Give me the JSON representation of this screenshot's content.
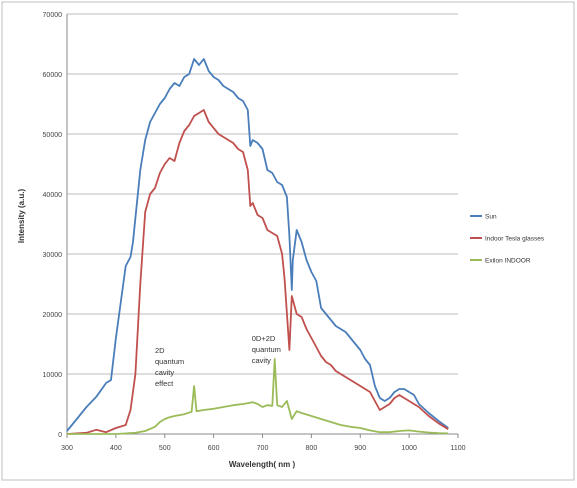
{
  "chart_data": {
    "type": "line",
    "title": "",
    "xlabel": "Wavelength( nm )",
    "ylabel": "Intensity (a.u.)",
    "xlim": [
      300,
      1100
    ],
    "ylim": [
      0,
      70000
    ],
    "x_ticks": [
      300,
      400,
      500,
      600,
      700,
      800,
      900,
      1000,
      1100
    ],
    "y_ticks": [
      0,
      10000,
      20000,
      30000,
      40000,
      50000,
      60000,
      70000
    ],
    "x_tick_labels": [
      "300",
      "400",
      "500",
      "600",
      "700",
      "800",
      "900",
      "1000",
      "1100"
    ],
    "y_tick_labels": [
      "0",
      "10000",
      "20000",
      "30000",
      "40000",
      "50000",
      "60000",
      "70000"
    ],
    "grid": "horizontal",
    "legend_position": "right",
    "annotations": [
      {
        "lines": [
          "2D",
          "quantum",
          "cavity",
          "effect"
        ],
        "x": 480,
        "y": 13500
      },
      {
        "lines": [
          "0D+2D",
          "quantum",
          "cavity"
        ],
        "x": 678,
        "y": 15500
      }
    ],
    "series": [
      {
        "name": "Sun",
        "color": "#4a7ebb",
        "points": [
          [
            300,
            500
          ],
          [
            320,
            2500
          ],
          [
            340,
            4500
          ],
          [
            360,
            6200
          ],
          [
            380,
            8500
          ],
          [
            390,
            9000
          ],
          [
            400,
            16000
          ],
          [
            410,
            22000
          ],
          [
            420,
            28000
          ],
          [
            430,
            29500
          ],
          [
            435,
            32000
          ],
          [
            440,
            36000
          ],
          [
            450,
            44000
          ],
          [
            460,
            49000
          ],
          [
            470,
            52000
          ],
          [
            480,
            53500
          ],
          [
            490,
            55000
          ],
          [
            500,
            56000
          ],
          [
            510,
            57500
          ],
          [
            520,
            58500
          ],
          [
            530,
            58000
          ],
          [
            540,
            59500
          ],
          [
            550,
            60000
          ],
          [
            560,
            62500
          ],
          [
            570,
            61500
          ],
          [
            580,
            62500
          ],
          [
            590,
            60500
          ],
          [
            600,
            59500
          ],
          [
            610,
            59000
          ],
          [
            620,
            58000
          ],
          [
            630,
            57500
          ],
          [
            640,
            57000
          ],
          [
            650,
            56000
          ],
          [
            660,
            55500
          ],
          [
            670,
            54000
          ],
          [
            675,
            48000
          ],
          [
            680,
            49000
          ],
          [
            690,
            48500
          ],
          [
            700,
            47500
          ],
          [
            710,
            44000
          ],
          [
            720,
            43500
          ],
          [
            730,
            42000
          ],
          [
            740,
            41500
          ],
          [
            750,
            39500
          ],
          [
            755,
            33000
          ],
          [
            760,
            24000
          ],
          [
            762,
            29000
          ],
          [
            770,
            34000
          ],
          [
            780,
            32000
          ],
          [
            790,
            29000
          ],
          [
            800,
            27000
          ],
          [
            810,
            25500
          ],
          [
            820,
            21000
          ],
          [
            830,
            20000
          ],
          [
            840,
            19000
          ],
          [
            850,
            18000
          ],
          [
            860,
            17500
          ],
          [
            870,
            17000
          ],
          [
            880,
            16000
          ],
          [
            890,
            15000
          ],
          [
            900,
            14000
          ],
          [
            910,
            12500
          ],
          [
            920,
            11500
          ],
          [
            930,
            8000
          ],
          [
            940,
            6000
          ],
          [
            950,
            5500
          ],
          [
            960,
            6000
          ],
          [
            970,
            7000
          ],
          [
            980,
            7500
          ],
          [
            990,
            7500
          ],
          [
            1000,
            7000
          ],
          [
            1010,
            6500
          ],
          [
            1020,
            5000
          ],
          [
            1040,
            3500
          ],
          [
            1060,
            2200
          ],
          [
            1080,
            1000
          ]
        ]
      },
      {
        "name": "Indoor Tesla glasses",
        "color": "#c0504d",
        "points": [
          [
            300,
            0
          ],
          [
            340,
            200
          ],
          [
            360,
            700
          ],
          [
            380,
            300
          ],
          [
            400,
            1000
          ],
          [
            420,
            1500
          ],
          [
            430,
            4000
          ],
          [
            440,
            10000
          ],
          [
            450,
            25000
          ],
          [
            460,
            37000
          ],
          [
            470,
            40000
          ],
          [
            480,
            41000
          ],
          [
            490,
            43500
          ],
          [
            500,
            45000
          ],
          [
            510,
            46000
          ],
          [
            520,
            45500
          ],
          [
            530,
            48500
          ],
          [
            540,
            50500
          ],
          [
            550,
            51500
          ],
          [
            560,
            53000
          ],
          [
            570,
            53500
          ],
          [
            580,
            54000
          ],
          [
            590,
            52000
          ],
          [
            600,
            51000
          ],
          [
            610,
            50000
          ],
          [
            620,
            49500
          ],
          [
            630,
            49000
          ],
          [
            640,
            48500
          ],
          [
            650,
            47500
          ],
          [
            660,
            47000
          ],
          [
            670,
            44000
          ],
          [
            675,
            38000
          ],
          [
            680,
            38500
          ],
          [
            690,
            36500
          ],
          [
            700,
            36000
          ],
          [
            710,
            34000
          ],
          [
            720,
            33500
          ],
          [
            730,
            33000
          ],
          [
            740,
            30000
          ],
          [
            745,
            26000
          ],
          [
            755,
            14000
          ],
          [
            760,
            23000
          ],
          [
            770,
            20000
          ],
          [
            780,
            19500
          ],
          [
            790,
            17500
          ],
          [
            800,
            16000
          ],
          [
            810,
            14500
          ],
          [
            820,
            13000
          ],
          [
            830,
            12000
          ],
          [
            840,
            11500
          ],
          [
            850,
            10500
          ],
          [
            860,
            10000
          ],
          [
            870,
            9500
          ],
          [
            880,
            9000
          ],
          [
            890,
            8500
          ],
          [
            900,
            8000
          ],
          [
            910,
            7500
          ],
          [
            920,
            7000
          ],
          [
            930,
            5500
          ],
          [
            940,
            4000
          ],
          [
            950,
            4500
          ],
          [
            960,
            5000
          ],
          [
            970,
            6000
          ],
          [
            980,
            6500
          ],
          [
            990,
            6000
          ],
          [
            1000,
            5500
          ],
          [
            1020,
            4500
          ],
          [
            1040,
            3000
          ],
          [
            1060,
            1800
          ],
          [
            1080,
            800
          ]
        ]
      },
      {
        "name": "Exilon INDOOR",
        "color": "#9bbb59",
        "points": [
          [
            300,
            0
          ],
          [
            400,
            0
          ],
          [
            440,
            200
          ],
          [
            460,
            500
          ],
          [
            480,
            1200
          ],
          [
            490,
            2000
          ],
          [
            500,
            2500
          ],
          [
            510,
            2800
          ],
          [
            520,
            3000
          ],
          [
            540,
            3300
          ],
          [
            555,
            3700
          ],
          [
            560,
            8000
          ],
          [
            565,
            3800
          ],
          [
            580,
            4000
          ],
          [
            600,
            4200
          ],
          [
            620,
            4500
          ],
          [
            640,
            4800
          ],
          [
            660,
            5000
          ],
          [
            680,
            5300
          ],
          [
            690,
            5000
          ],
          [
            700,
            4500
          ],
          [
            710,
            4800
          ],
          [
            720,
            4700
          ],
          [
            725,
            12500
          ],
          [
            730,
            4800
          ],
          [
            740,
            4500
          ],
          [
            750,
            5500
          ],
          [
            760,
            2500
          ],
          [
            770,
            3800
          ],
          [
            780,
            3500
          ],
          [
            800,
            3000
          ],
          [
            820,
            2500
          ],
          [
            840,
            2000
          ],
          [
            860,
            1500
          ],
          [
            880,
            1200
          ],
          [
            900,
            1000
          ],
          [
            920,
            600
          ],
          [
            940,
            300
          ],
          [
            960,
            300
          ],
          [
            980,
            500
          ],
          [
            1000,
            600
          ],
          [
            1020,
            400
          ],
          [
            1040,
            250
          ],
          [
            1060,
            150
          ],
          [
            1080,
            100
          ]
        ]
      }
    ]
  }
}
